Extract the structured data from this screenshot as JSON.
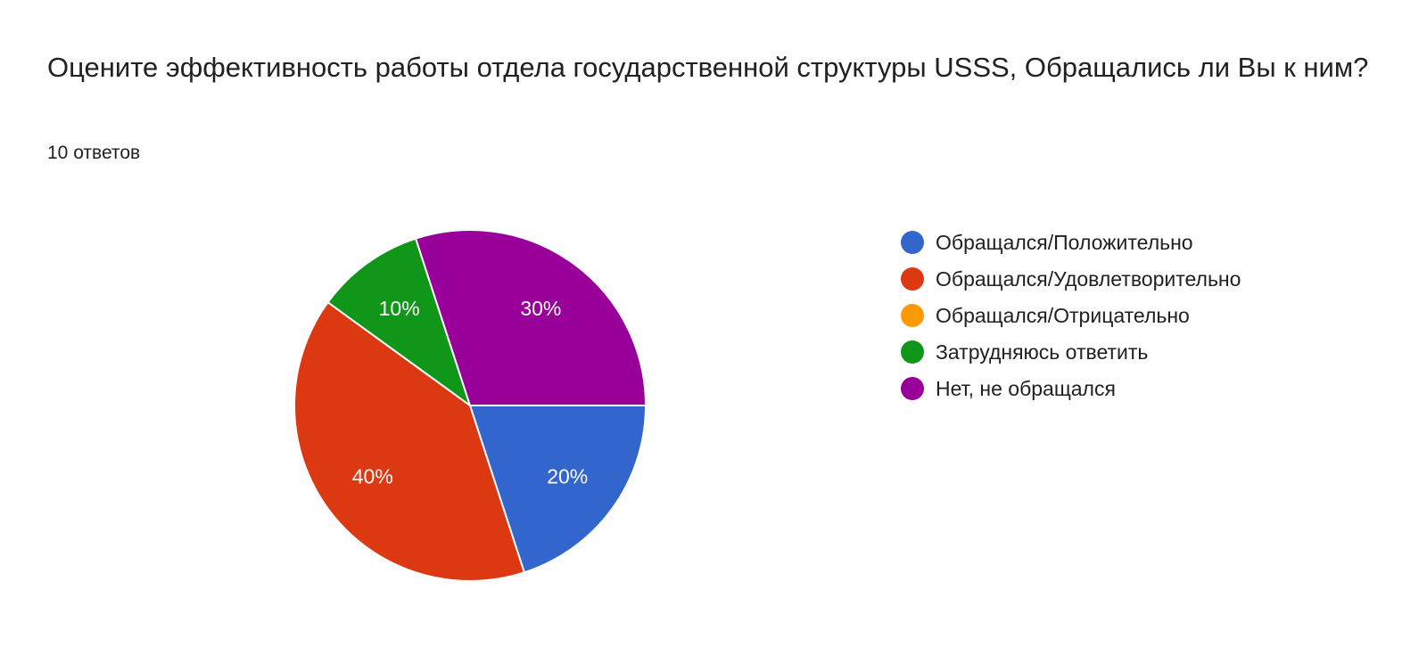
{
  "question": {
    "title": "Оцените эффективность работы отдела государственной структуры USSS,  Обращались ли Вы к ним?",
    "response_count": "10 ответов"
  },
  "chart_data": {
    "type": "pie",
    "title": "Оцените эффективность работы отдела государственной структуры USSS,  Обращались ли Вы к ним?",
    "legend_position": "right",
    "categories": [
      "Обращался/Положительно",
      "Обращался/Удовлетворительно",
      "Обращался/Отрицательно",
      "Затрудняюсь ответить",
      "Нет, не обращался"
    ],
    "values": [
      20,
      40,
      0,
      10,
      30
    ],
    "labels": [
      "20%",
      "40%",
      "",
      "10%",
      "30%"
    ],
    "colors": [
      "#3366CC",
      "#DC3912",
      "#FF9900",
      "#109618",
      "#990099"
    ]
  }
}
